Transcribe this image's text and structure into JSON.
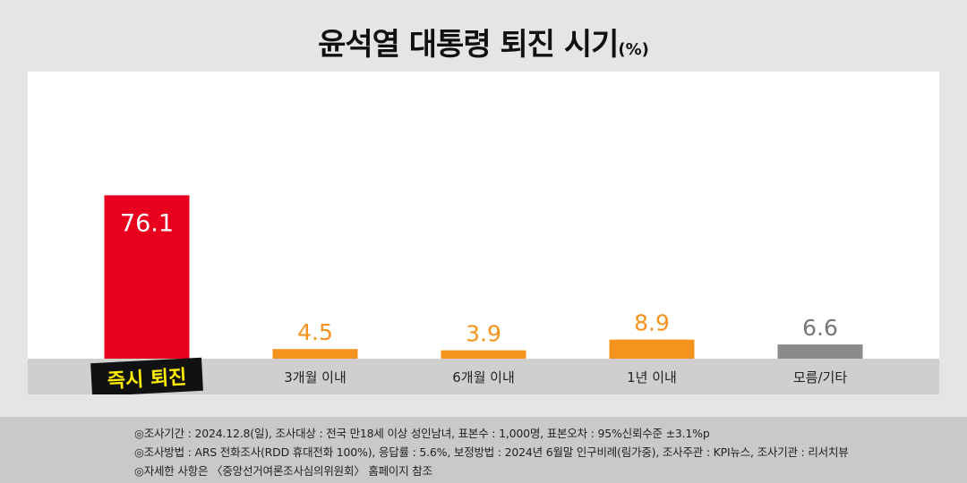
{
  "title": {
    "main": "윤석열 대통령 퇴진 시기",
    "unit": "(%)"
  },
  "colors": {
    "red": "#e8001e",
    "orange": "#f6931e",
    "gray": "#8a8a8a",
    "label_orange": "#f6931e",
    "label_gray": "#777777",
    "axis_band": "#cfcfcf",
    "highlight_bg": "#111111",
    "highlight_text": "#ffee00"
  },
  "chart_data": {
    "type": "bar",
    "categories": [
      "즉시 퇴진",
      "3개월 이내",
      "6개월 이내",
      "1년 이내",
      "모름/기타"
    ],
    "values": [
      76.1,
      4.5,
      3.9,
      8.9,
      6.6
    ],
    "value_labels": [
      "76.1",
      "4.5",
      "3.9",
      "8.9",
      "6.6"
    ],
    "bar_colors": [
      "#e8001e",
      "#f6931e",
      "#f6931e",
      "#f6931e",
      "#8a8a8a"
    ],
    "label_colors": [
      "#ffffff",
      "#f6931e",
      "#f6931e",
      "#f6931e",
      "#777777"
    ],
    "highlight_category": "즉시 퇴진",
    "ylim": [
      0,
      100
    ],
    "xlabel": "",
    "ylabel": "",
    "grid": false,
    "legend": "none"
  },
  "footer": {
    "notes": [
      "◎조사기간 : 2024.12.8(일), 조사대상 : 전국 만18세 이상 성인남녀, 표본수 : 1,000명, 표본오차 : 95%신뢰수준 ±3.1%p",
      "◎조사방법 : ARS 전화조사(RDD 휴대전화 100%), 응답률 : 5.6%, 보정방법 : 2024년 6월말 인구비례(림가중), 조사주관 : KPI뉴스, 조사기관 : 리서치뷰",
      "◎자세한 사항은 〈중앙선거여론조사심의위원회〉 홈페이지 참조"
    ]
  }
}
